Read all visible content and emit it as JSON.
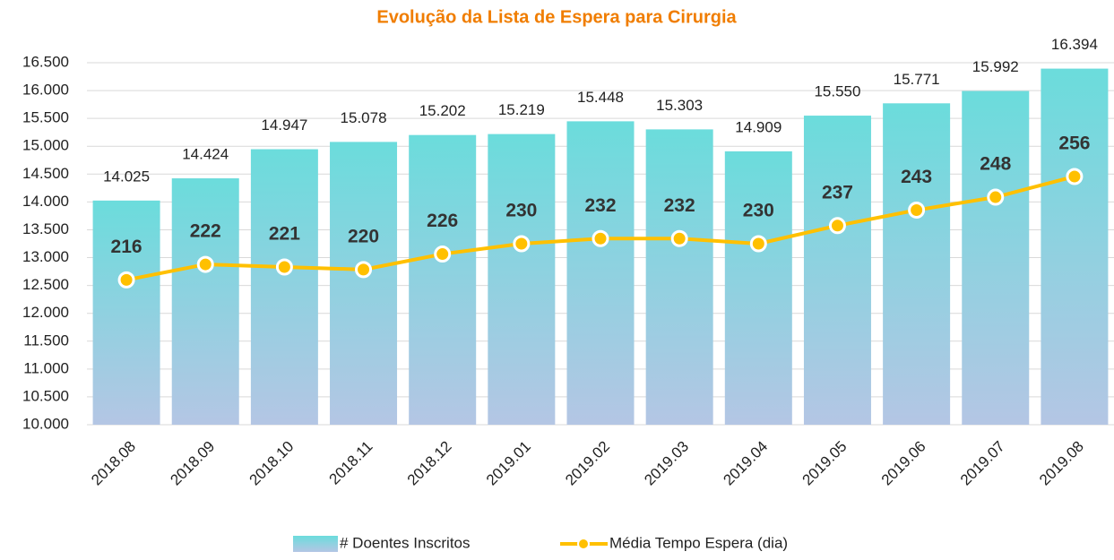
{
  "chart_data": {
    "type": "bar_line",
    "title": "Evolução da Lista de Espera para Cirurgia",
    "categories": [
      "2018.08",
      "2018.09",
      "2018.10",
      "2018.11",
      "2018.12",
      "2019.01",
      "2019.02",
      "2019.03",
      "2019.04",
      "2019.05",
      "2019.06",
      "2019.07",
      "2019.08"
    ],
    "series": [
      {
        "name": "# Doentes Inscritos",
        "type": "bar",
        "color": "#6bdcdc",
        "values": [
          14025,
          14424,
          14947,
          15078,
          15202,
          15219,
          15448,
          15303,
          14909,
          15550,
          15771,
          15992,
          16394
        ],
        "value_labels": [
          "14.025",
          "14.424",
          "14.947",
          "15.078",
          "15.202",
          "15.219",
          "15.448",
          "15.303",
          "14.909",
          "15.550",
          "15.771",
          "15.992",
          "16.394"
        ]
      },
      {
        "name": "Média Tempo Espera (dia)",
        "type": "line",
        "axis": "y2",
        "color": "#ffc000",
        "values": [
          216,
          222,
          221,
          220,
          226,
          230,
          232,
          232,
          230,
          237,
          243,
          248,
          256
        ]
      }
    ],
    "ylim": [
      10000,
      16500
    ],
    "yticks": [
      {
        "value": 10000,
        "label": "10.000"
      },
      {
        "value": 10500,
        "label": "10.500"
      },
      {
        "value": 11000,
        "label": "11.000"
      },
      {
        "value": 11500,
        "label": "11.500"
      },
      {
        "value": 12000,
        "label": "12.000"
      },
      {
        "value": 12500,
        "label": "12.500"
      },
      {
        "value": 13000,
        "label": "13.000"
      },
      {
        "value": 13500,
        "label": "13.500"
      },
      {
        "value": 14000,
        "label": "14.000"
      },
      {
        "value": 14500,
        "label": "14.500"
      },
      {
        "value": 15000,
        "label": "15.000"
      },
      {
        "value": 15500,
        "label": "15.500"
      },
      {
        "value": 16000,
        "label": "16.000"
      },
      {
        "value": 16500,
        "label": "16.500"
      }
    ],
    "y2lim": [
      160,
      300
    ],
    "grid": true,
    "legend": "bottom"
  }
}
